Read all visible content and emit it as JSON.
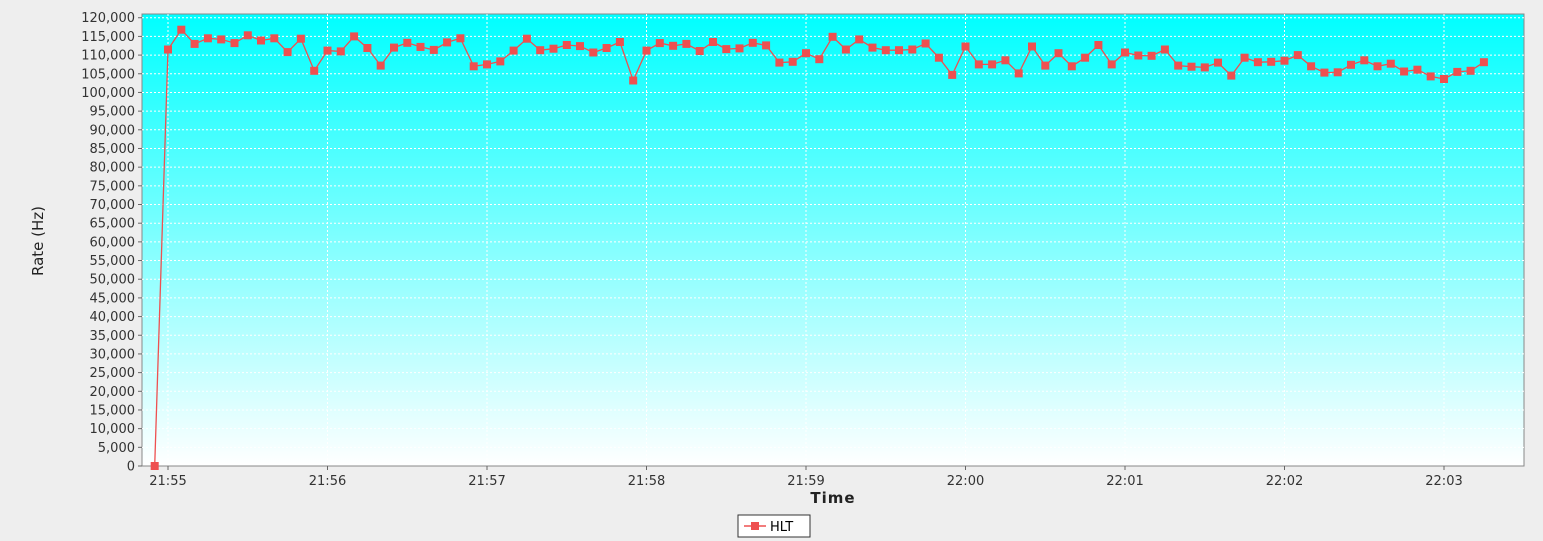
{
  "chart_data": {
    "type": "line",
    "xlabel": "Time",
    "ylabel": "Rate (Hz)",
    "x_tick_labels": [
      "21:55",
      "21:56",
      "21:57",
      "21:58",
      "21:59",
      "22:00",
      "22:01",
      "22:02",
      "22:03"
    ],
    "y_tick_labels": [
      "0",
      "5,000",
      "10,000",
      "15,000",
      "20,000",
      "25,000",
      "30,000",
      "35,000",
      "40,000",
      "45,000",
      "50,000",
      "55,000",
      "60,000",
      "65,000",
      "70,000",
      "75,000",
      "80,000",
      "85,000",
      "90,000",
      "95,000",
      "100,000",
      "105,000",
      "110,000",
      "115,000",
      "120,000"
    ],
    "ylim": [
      0,
      121000
    ],
    "grid": true,
    "legend": "bottom-center",
    "background_gradient": [
      "#00ffff",
      "#ffffff"
    ],
    "series": [
      {
        "name": "HLT",
        "color": "#ee5050",
        "marker": "square",
        "x": [
          "21:54:55",
          "21:55:00",
          "21:55:05",
          "21:55:10",
          "21:55:15",
          "21:55:20",
          "21:55:25",
          "21:55:30",
          "21:55:35",
          "21:55:40",
          "21:55:45",
          "21:55:50",
          "21:55:55",
          "21:56:00",
          "21:56:05",
          "21:56:10",
          "21:56:15",
          "21:56:20",
          "21:56:25",
          "21:56:30",
          "21:56:35",
          "21:56:40",
          "21:56:45",
          "21:56:50",
          "21:56:55",
          "21:57:00",
          "21:57:05",
          "21:57:10",
          "21:57:15",
          "21:57:20",
          "21:57:25",
          "21:57:30",
          "21:57:35",
          "21:57:40",
          "21:57:45",
          "21:57:50",
          "21:57:55",
          "21:58:00",
          "21:58:05",
          "21:58:10",
          "21:58:15",
          "21:58:20",
          "21:58:25",
          "21:58:30",
          "21:58:35",
          "21:58:40",
          "21:58:45",
          "21:58:50",
          "21:58:55",
          "21:59:00",
          "21:59:05",
          "21:59:10",
          "21:59:15",
          "21:59:20",
          "21:59:25",
          "21:59:30",
          "21:59:35",
          "21:59:40",
          "21:59:45",
          "21:59:50",
          "21:59:55",
          "22:00:00",
          "22:00:05",
          "22:00:10",
          "22:00:15",
          "22:00:20",
          "22:00:25",
          "22:00:30",
          "22:00:35",
          "22:00:40",
          "22:00:45",
          "22:00:50",
          "22:00:55",
          "22:01:00",
          "22:01:05",
          "22:01:10",
          "22:01:15",
          "22:01:20",
          "22:01:25",
          "22:01:30",
          "22:01:35",
          "22:01:40",
          "22:01:45",
          "22:01:50",
          "22:01:55",
          "22:02:00",
          "22:02:05",
          "22:02:10",
          "22:02:15",
          "22:02:20",
          "22:02:25",
          "22:02:30",
          "22:02:35",
          "22:02:40",
          "22:02:45",
          "22:02:50",
          "22:02:55",
          "22:03:00",
          "22:03:05",
          "22:03:10",
          "22:03:15"
        ],
        "values": [
          0,
          111500,
          116800,
          113000,
          114500,
          114200,
          113200,
          115300,
          113900,
          114500,
          110800,
          114400,
          105800,
          111200,
          111000,
          115000,
          111900,
          107200,
          112000,
          113300,
          112200,
          111400,
          113400,
          114500,
          107000,
          107500,
          108300,
          111200,
          114400,
          111300,
          111700,
          112700,
          112400,
          110700,
          111900,
          113500,
          103200,
          111200,
          113200,
          112500,
          113000,
          111100,
          113500,
          111600,
          111800,
          113300,
          112600,
          108000,
          108200,
          110500,
          108900,
          114900,
          111500,
          114200,
          112000,
          111300,
          111300,
          111500,
          113100,
          109300,
          104700,
          112300,
          107500,
          107500,
          108600,
          105100,
          112300,
          107200,
          110500,
          107000,
          109300,
          112700,
          107500,
          110700,
          109900,
          109800,
          111500,
          107200,
          106900,
          106700,
          108000,
          104500,
          109300,
          108100,
          108200,
          108500,
          110000,
          107000,
          105300,
          105400,
          107400,
          108600,
          107000,
          107700,
          105600,
          106100,
          104300,
          103600,
          105500,
          105800,
          108100
        ]
      }
    ]
  }
}
